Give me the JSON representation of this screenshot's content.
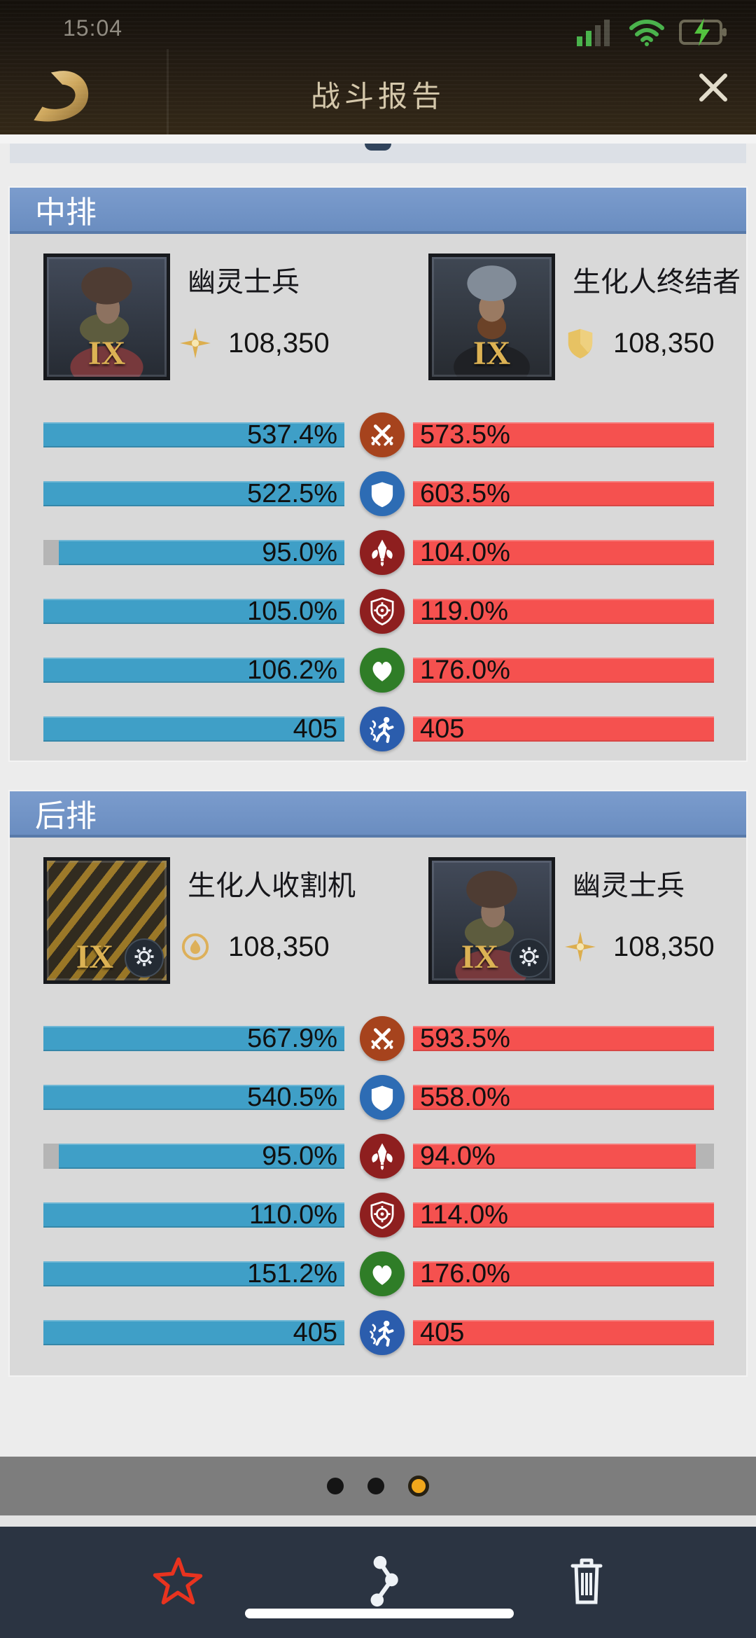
{
  "status_bar": {
    "time": "15:04"
  },
  "header": {
    "title": "战斗报告"
  },
  "sections": [
    {
      "title": "中排",
      "units": [
        {
          "name": "幽灵士兵",
          "level": "IX",
          "power": "108,350",
          "power_icon": "compass",
          "art": "ghost",
          "gear": false
        },
        {
          "name": "生化人终结者",
          "level": "IX",
          "power": "108,350",
          "power_icon": "gold-shield",
          "art": "terminator",
          "gear": false
        }
      ],
      "rows": [
        {
          "stat": "attack",
          "left": "537.4%",
          "right": "573.5%",
          "left_fill": 100,
          "right_fill": 100
        },
        {
          "stat": "defense",
          "left": "522.5%",
          "right": "603.5%",
          "left_fill": 100,
          "right_fill": 100
        },
        {
          "stat": "skill",
          "left": "95.0%",
          "right": "104.0%",
          "left_fill": 95,
          "right_fill": 100
        },
        {
          "stat": "accuracy",
          "left": "105.0%",
          "right": "119.0%",
          "left_fill": 100,
          "right_fill": 100
        },
        {
          "stat": "health",
          "left": "106.2%",
          "right": "176.0%",
          "left_fill": 100,
          "right_fill": 100
        },
        {
          "stat": "speed",
          "left": "405",
          "right": "405",
          "left_fill": 100,
          "right_fill": 100
        }
      ]
    },
    {
      "title": "后排",
      "units": [
        {
          "name": "生化人收割机",
          "level": "IX",
          "power": "108,350",
          "power_icon": "lamp",
          "art": "harvester",
          "gear": true
        },
        {
          "name": "幽灵士兵",
          "level": "IX",
          "power": "108,350",
          "power_icon": "compass",
          "art": "ghost",
          "gear": true
        }
      ],
      "rows": [
        {
          "stat": "attack",
          "left": "567.9%",
          "right": "593.5%",
          "left_fill": 100,
          "right_fill": 100
        },
        {
          "stat": "defense",
          "left": "540.5%",
          "right": "558.0%",
          "left_fill": 100,
          "right_fill": 100
        },
        {
          "stat": "skill",
          "left": "95.0%",
          "right": "94.0%",
          "left_fill": 95,
          "right_fill": 94
        },
        {
          "stat": "accuracy",
          "left": "110.0%",
          "right": "114.0%",
          "left_fill": 100,
          "right_fill": 100
        },
        {
          "stat": "health",
          "left": "151.2%",
          "right": "176.0%",
          "left_fill": 100,
          "right_fill": 100
        },
        {
          "stat": "speed",
          "left": "405",
          "right": "405",
          "left_fill": 100,
          "right_fill": 100
        }
      ]
    }
  ],
  "pagination": {
    "count": 3,
    "active_index": 2
  },
  "toolbar": {
    "buttons": [
      {
        "name": "favorite",
        "icon": "star"
      },
      {
        "name": "share",
        "icon": "share"
      },
      {
        "name": "delete",
        "icon": "trash"
      }
    ]
  },
  "colors": {
    "bar_blue": "#3f9fc7",
    "bar_red": "#f5514f",
    "bar_empty": "#b5b5b5",
    "section_header_blue": "#6d92c4",
    "accent_gold": "#dcb254",
    "dot_active": "#f0a71c",
    "toolbar_bg": "#2b3442",
    "star_red": "#e8331f"
  }
}
